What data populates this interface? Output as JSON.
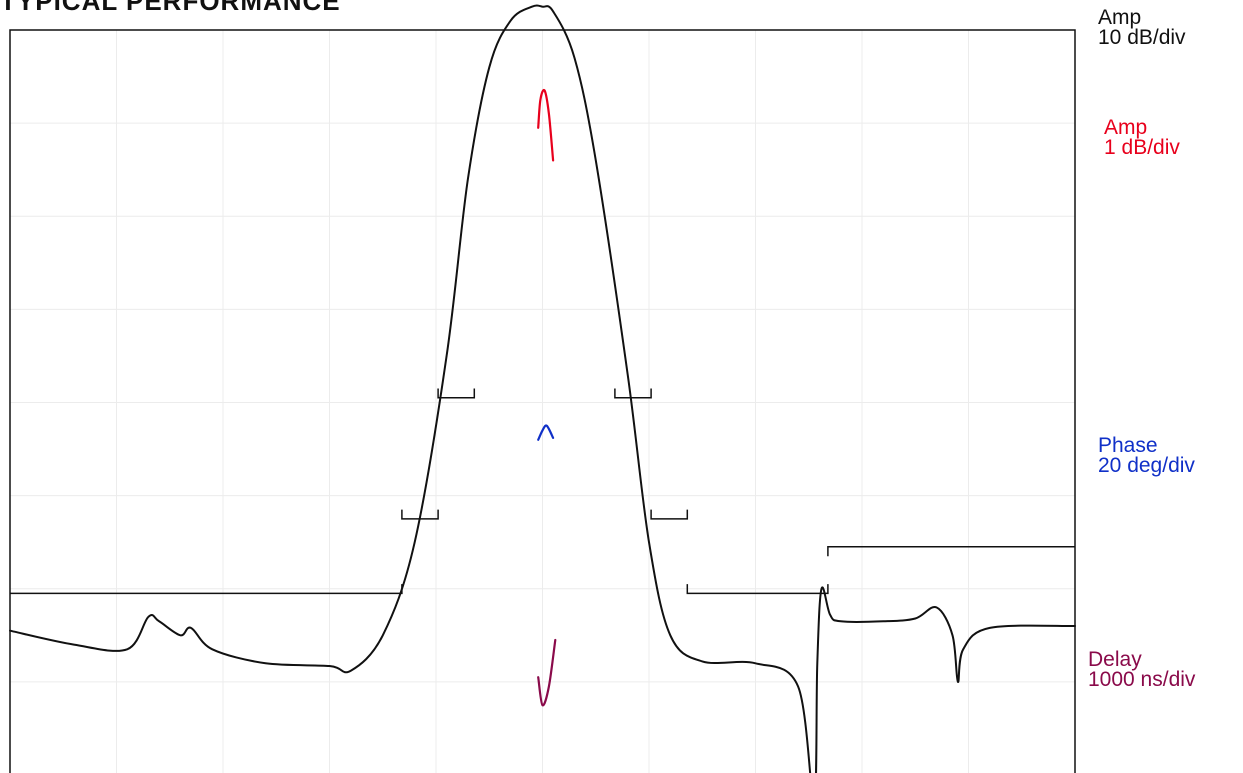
{
  "page": {
    "title": "TYPICAL PERFORMANCE"
  },
  "chart_data": {
    "type": "line",
    "grid": true,
    "x_divisions": 10,
    "y_divisions": 8,
    "scales": [
      {
        "name": "Amp",
        "units": "10 dB/div",
        "color": "#111111"
      },
      {
        "name": "Amp",
        "units": "1 dB/div",
        "color": "#e8001c"
      },
      {
        "name": "Phase",
        "units": "20 deg/div",
        "color": "#1030c8"
      },
      {
        "name": "Delay",
        "units": "1000 ns/div",
        "color": "#8a0a4a"
      }
    ],
    "series": [
      {
        "name": "Amp 10 dB/div",
        "color": "#111111",
        "units": "div",
        "x": [
          0,
          0.6,
          1.1,
          1.3,
          1.4,
          1.6,
          1.7,
          1.9,
          2.4,
          3.0,
          3.2,
          3.5,
          3.8,
          4.1,
          4.3,
          4.5,
          4.7,
          4.9,
          5.0,
          5.1,
          5.3,
          5.5,
          5.8,
          6.0,
          6.2,
          6.5,
          7.0,
          7.4,
          7.55,
          7.58,
          7.62,
          7.7,
          7.8,
          8.2,
          8.5,
          8.7,
          8.85,
          8.9,
          8.95,
          9.2,
          10.0
        ],
        "y": [
          1.55,
          1.4,
          1.35,
          1.7,
          1.65,
          1.5,
          1.58,
          1.35,
          1.2,
          1.17,
          1.12,
          1.5,
          2.5,
          4.5,
          6.4,
          7.6,
          8.1,
          8.25,
          8.25,
          8.2,
          7.7,
          6.6,
          4.3,
          2.5,
          1.5,
          1.22,
          1.2,
          0.95,
          -0.3,
          1.2,
          2.0,
          1.72,
          1.65,
          1.65,
          1.68,
          1.8,
          1.5,
          1.0,
          1.35,
          1.58,
          1.6
        ]
      },
      {
        "name": "Amp 1 dB/div",
        "color": "#e8001c",
        "units": "div",
        "x": [
          4.96,
          4.98,
          5.02,
          5.06,
          5.1
        ],
        "y": [
          6.95,
          7.25,
          7.35,
          7.1,
          6.6
        ]
      },
      {
        "name": "Phase 20 deg/div",
        "color": "#1030c8",
        "units": "div",
        "x": [
          4.96,
          5.0,
          5.04,
          5.1
        ],
        "y": [
          3.6,
          3.7,
          3.75,
          3.62
        ]
      },
      {
        "name": "Delay 1000 ns/div",
        "color": "#8a0a4a",
        "units": "div",
        "x": [
          4.96,
          5.0,
          5.06,
          5.12
        ],
        "y": [
          1.05,
          0.75,
          0.95,
          1.45
        ]
      }
    ],
    "limit_lines": [
      {
        "x": [
          0,
          3.68,
          3.68
        ],
        "y": [
          1.95,
          1.95,
          2.05
        ]
      },
      {
        "x": [
          3.68,
          3.68,
          4.02,
          4.02
        ],
        "y": [
          2.85,
          2.75,
          2.75,
          2.85
        ]
      },
      {
        "x": [
          4.02,
          4.02,
          4.36,
          4.36
        ],
        "y": [
          4.15,
          4.05,
          4.05,
          4.15
        ]
      },
      {
        "x": [
          5.68,
          5.68,
          6.02,
          6.02
        ],
        "y": [
          4.15,
          4.05,
          4.05,
          4.15
        ]
      },
      {
        "x": [
          6.02,
          6.02,
          6.36,
          6.36
        ],
        "y": [
          2.85,
          2.75,
          2.75,
          2.85
        ]
      },
      {
        "x": [
          6.36,
          6.36,
          7.68,
          7.68
        ],
        "y": [
          2.05,
          1.95,
          1.95,
          2.05
        ]
      },
      {
        "x": [
          7.68,
          7.68,
          10.0
        ],
        "y": [
          2.35,
          2.45,
          2.45
        ]
      }
    ]
  }
}
